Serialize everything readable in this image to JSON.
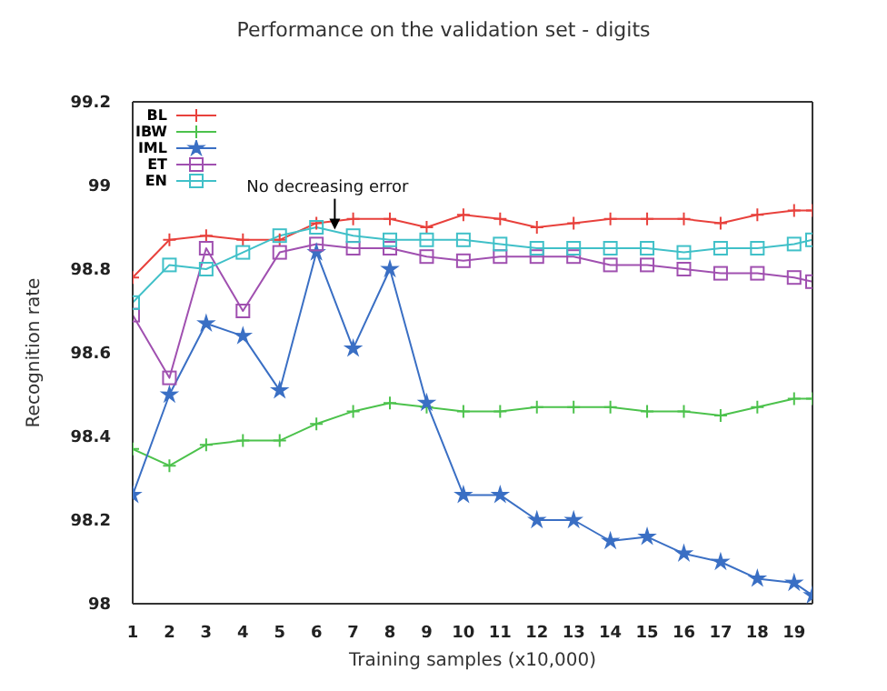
{
  "chart_data": {
    "type": "line",
    "title": "Performance on the validation set - digits",
    "xlabel": "Training samples (x10,000)",
    "ylabel": "Recognition rate",
    "x": [
      1,
      2,
      3,
      4,
      5,
      6,
      7,
      8,
      9,
      10,
      11,
      12,
      13,
      14,
      15,
      16,
      17,
      18,
      19,
      19.5
    ],
    "xlim": [
      1,
      19.5
    ],
    "xticks": [
      1,
      2,
      3,
      4,
      5,
      6,
      7,
      8,
      9,
      10,
      11,
      12,
      13,
      14,
      15,
      16,
      17,
      18,
      19
    ],
    "ylim": [
      98,
      99.2
    ],
    "yticks": [
      98,
      98.2,
      98.4,
      98.6,
      98.8,
      99,
      99.2
    ],
    "grid": false,
    "legend": "top left",
    "line_style": "solid",
    "annotations": [
      {
        "text": "No decreasing error",
        "x": 6.5,
        "y": 98.89
      }
    ],
    "series": [
      {
        "name": "BL",
        "color": "#e8413c",
        "marker": "cross",
        "values": [
          98.78,
          98.87,
          98.88,
          98.87,
          98.87,
          98.91,
          98.92,
          98.92,
          98.9,
          98.93,
          98.92,
          98.9,
          98.91,
          98.92,
          98.92,
          98.92,
          98.91,
          98.93,
          98.94,
          98.94
        ]
      },
      {
        "name": "IBW",
        "color": "#4cc24c",
        "marker": "cross",
        "values": [
          98.37,
          98.33,
          98.38,
          98.39,
          98.39,
          98.43,
          98.46,
          98.48,
          98.47,
          98.46,
          98.46,
          98.47,
          98.47,
          98.47,
          98.46,
          98.46,
          98.45,
          98.47,
          98.49,
          98.49
        ]
      },
      {
        "name": "IML",
        "color": "#3a6fc4",
        "marker": "star",
        "values": [
          98.26,
          98.5,
          98.67,
          98.64,
          98.51,
          98.84,
          98.61,
          98.8,
          98.48,
          98.26,
          98.26,
          98.2,
          98.2,
          98.15,
          98.16,
          98.12,
          98.1,
          98.06,
          98.05,
          98.02
        ]
      },
      {
        "name": "ET",
        "color": "#a050b0",
        "marker": "square",
        "values": [
          98.69,
          98.54,
          98.85,
          98.7,
          98.84,
          98.86,
          98.85,
          98.85,
          98.83,
          98.82,
          98.83,
          98.83,
          98.83,
          98.81,
          98.81,
          98.8,
          98.79,
          98.79,
          98.78,
          98.77
        ]
      },
      {
        "name": "EN",
        "color": "#40c0c8",
        "marker": "square",
        "values": [
          98.72,
          98.81,
          98.8,
          98.84,
          98.88,
          98.9,
          98.88,
          98.87,
          98.87,
          98.87,
          98.86,
          98.85,
          98.85,
          98.85,
          98.85,
          98.84,
          98.85,
          98.85,
          98.86,
          98.87
        ]
      }
    ]
  }
}
